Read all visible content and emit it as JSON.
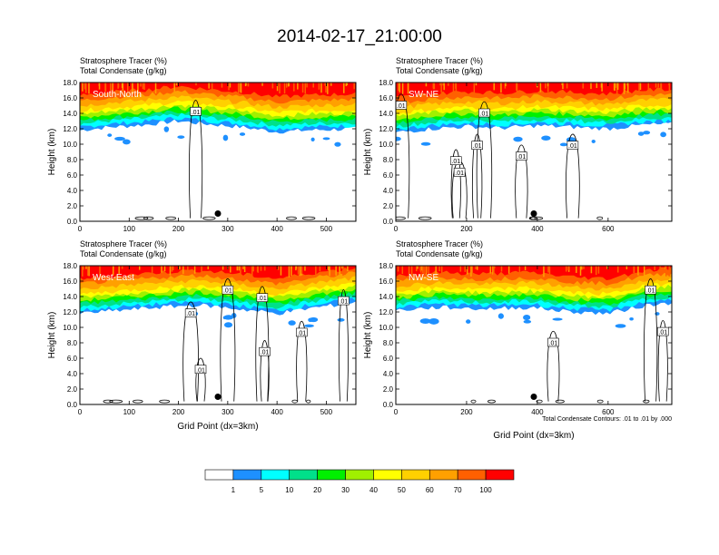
{
  "title": "2014-02-17_21:00:00",
  "panel_headers": {
    "tracer": "Stratosphere Tracer   (%)",
    "condensate": "Total Condensate   (g/kg)"
  },
  "ylabel": "Height (km)",
  "xlabel": "Grid Point (dx=3km)",
  "contour_note": "Total Condensate Contours: .01 to .01 by .000",
  "colorbar": {
    "colors": [
      "#ffffff",
      "#1e90ff",
      "#00ffff",
      "#00e08a",
      "#00f000",
      "#a0f000",
      "#ffff00",
      "#ffd000",
      "#ffa000",
      "#ff6000",
      "#ff0000"
    ],
    "labels": [
      "1",
      "5",
      "10",
      "20",
      "30",
      "40",
      "50",
      "60",
      "70",
      "100"
    ]
  },
  "chart_data": [
    {
      "type": "heatmap",
      "region": "South-North",
      "title": "Stratosphere Tracer (%) / Total Condensate (g/kg)",
      "xlim": [
        0,
        560
      ],
      "ylim": [
        0,
        18
      ],
      "xticks": [
        "0",
        "100",
        "200",
        "300",
        "400",
        "500"
      ],
      "xtick_values": [
        0,
        100,
        200,
        300,
        400,
        500
      ],
      "yticks": [
        "0.0",
        "2.0",
        "4.0",
        "6.0",
        "8.0",
        "10.0",
        "12.0",
        "14.0",
        "16.0",
        "18.0"
      ],
      "tracer_base_km": [
        [
          0,
          11.8
        ],
        [
          60,
          12.2
        ],
        [
          130,
          12.5
        ],
        [
          200,
          13.0
        ],
        [
          260,
          12.6
        ],
        [
          330,
          12.2
        ],
        [
          400,
          11.6
        ],
        [
          460,
          11.8
        ],
        [
          560,
          12.0
        ]
      ],
      "contour_labels": [
        {
          "x": 235,
          "y": 14.2,
          "text": ".01"
        }
      ],
      "marker": {
        "x": 280,
        "y": 1.0
      }
    },
    {
      "type": "heatmap",
      "region": "SW-NE",
      "title": "Stratosphere Tracer (%) / Total Condensate (g/kg)",
      "xlim": [
        0,
        780
      ],
      "ylim": [
        0,
        18
      ],
      "xticks": [
        "0",
        "200",
        "400",
        "600"
      ],
      "xtick_values": [
        0,
        200,
        400,
        600
      ],
      "yticks": [
        "0.0",
        "2.0",
        "4.0",
        "6.0",
        "8.0",
        "10.0",
        "12.0",
        "14.0",
        "16.0",
        "18.0"
      ],
      "tracer_base_km": [
        [
          0,
          11.5
        ],
        [
          100,
          12.0
        ],
        [
          200,
          12.3
        ],
        [
          300,
          12.1
        ],
        [
          400,
          12.4
        ],
        [
          500,
          12.2
        ],
        [
          600,
          12.0
        ],
        [
          700,
          12.5
        ],
        [
          780,
          12.6
        ]
      ],
      "contour_labels": [
        {
          "x": 15,
          "y": 15.0,
          "text": ".01"
        },
        {
          "x": 250,
          "y": 14.0,
          "text": ".01"
        },
        {
          "x": 230,
          "y": 9.8,
          "text": ".01"
        },
        {
          "x": 170,
          "y": 7.8,
          "text": ".01"
        },
        {
          "x": 180,
          "y": 6.3,
          "text": ".01"
        },
        {
          "x": 355,
          "y": 8.4,
          "text": ".01"
        },
        {
          "x": 500,
          "y": 9.8,
          "text": ".01"
        }
      ],
      "marker": {
        "x": 390,
        "y": 1.0
      }
    },
    {
      "type": "heatmap",
      "region": "West-East",
      "title": "Stratosphere Tracer (%) / Total Condensate (g/kg)",
      "xlim": [
        0,
        560
      ],
      "ylim": [
        0,
        18
      ],
      "xticks": [
        "0",
        "100",
        "200",
        "300",
        "400",
        "500"
      ],
      "xtick_values": [
        0,
        100,
        200,
        300,
        400,
        500
      ],
      "yticks": [
        "0.0",
        "2.0",
        "4.0",
        "6.0",
        "8.0",
        "10.0",
        "12.0",
        "14.0",
        "16.0",
        "18.0"
      ],
      "tracer_base_km": [
        [
          0,
          11.8
        ],
        [
          80,
          12.2
        ],
        [
          160,
          12.6
        ],
        [
          240,
          12.9
        ],
        [
          320,
          12.4
        ],
        [
          400,
          11.8
        ],
        [
          480,
          12.6
        ],
        [
          560,
          13.2
        ]
      ],
      "contour_labels": [
        {
          "x": 300,
          "y": 14.8,
          "text": ".01"
        },
        {
          "x": 370,
          "y": 13.8,
          "text": ".01"
        },
        {
          "x": 225,
          "y": 11.8,
          "text": ".01"
        },
        {
          "x": 450,
          "y": 9.3,
          "text": ".01"
        },
        {
          "x": 375,
          "y": 6.8,
          "text": ".01"
        },
        {
          "x": 245,
          "y": 4.5,
          "text": ".01"
        },
        {
          "x": 535,
          "y": 13.4,
          "text": ".01"
        }
      ],
      "marker": {
        "x": 280,
        "y": 1.0
      }
    },
    {
      "type": "heatmap",
      "region": "NW-SE",
      "title": "Stratosphere Tracer (%) / Total Condensate (g/kg)",
      "xlim": [
        0,
        780
      ],
      "ylim": [
        0,
        18
      ],
      "xticks": [
        "0",
        "200",
        "400",
        "600"
      ],
      "xtick_values": [
        0,
        200,
        400,
        600
      ],
      "yticks": [
        "0.0",
        "2.0",
        "4.0",
        "6.0",
        "8.0",
        "10.0",
        "12.0",
        "14.0",
        "16.0",
        "18.0"
      ],
      "tracer_base_km": [
        [
          0,
          12.2
        ],
        [
          120,
          12.6
        ],
        [
          250,
          12.4
        ],
        [
          380,
          12.6
        ],
        [
          500,
          12.0
        ],
        [
          600,
          11.8
        ],
        [
          700,
          12.8
        ],
        [
          780,
          13.2
        ]
      ],
      "contour_labels": [
        {
          "x": 720,
          "y": 14.8,
          "text": ".01"
        },
        {
          "x": 755,
          "y": 9.4,
          "text": ".01"
        },
        {
          "x": 445,
          "y": 8.0,
          "text": ".01"
        }
      ],
      "marker": {
        "x": 390,
        "y": 1.0
      }
    }
  ]
}
